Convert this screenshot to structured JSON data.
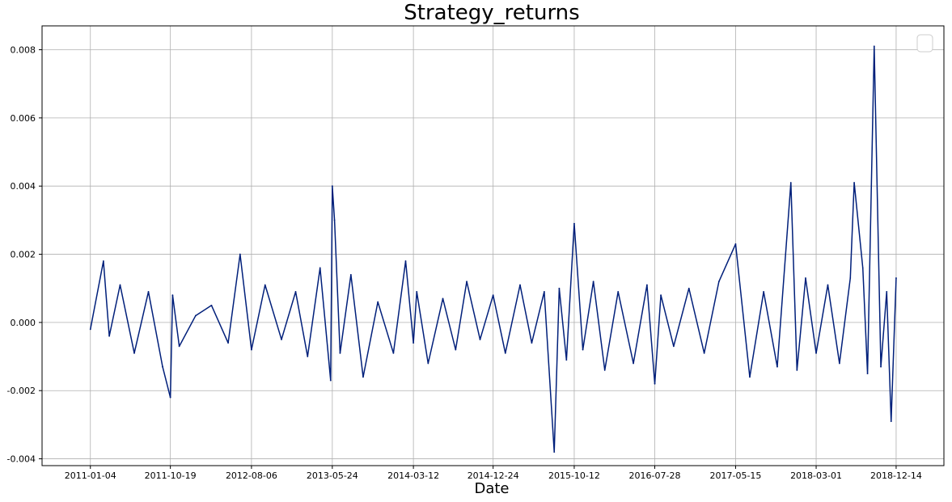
{
  "chart_data": {
    "type": "line",
    "title": "Strategy_returns",
    "xlabel": "Date",
    "ylabel": "",
    "grid": true,
    "legend": "top-right",
    "color": "#001f7a",
    "x_tick_labels": [
      "2011-01-04",
      "2011-10-19",
      "2012-08-06",
      "2013-05-24",
      "2014-03-12",
      "2014-12-24",
      "2015-10-12",
      "2016-07-28",
      "2017-05-15",
      "2018-03-01",
      "2018-12-14"
    ],
    "y_tick_labels": [
      "-0.004",
      "-0.002",
      "0.000",
      "0.002",
      "0.004",
      "0.006",
      "0.008"
    ],
    "y_ticks": [
      -0.004,
      -0.002,
      0.0,
      0.002,
      0.004,
      0.006,
      0.008
    ],
    "ylim": [
      -0.0042,
      0.0087
    ],
    "xlim": [
      "2010-07-14",
      "2019-06-04"
    ],
    "series": [
      {
        "x": [
          "2011-01-04",
          "2011-02-20",
          "2011-03-13",
          "2011-04-21",
          "2011-06-11",
          "2011-08-01",
          "2011-09-21",
          "2011-10-19",
          "2011-10-27",
          "2011-11-20",
          "2012-01-18",
          "2012-03-15",
          "2012-05-14",
          "2012-06-26",
          "2012-08-06",
          "2012-09-24",
          "2012-11-22",
          "2013-01-12",
          "2013-02-24",
          "2013-04-10",
          "2013-05-18",
          "2013-05-24",
          "2013-06-01",
          "2013-06-21",
          "2013-07-30",
          "2013-09-12",
          "2013-11-04",
          "2013-12-30",
          "2014-02-12",
          "2014-03-12",
          "2014-03-24",
          "2014-05-04",
          "2014-06-26",
          "2014-08-11",
          "2014-09-20",
          "2014-11-07",
          "2014-12-24",
          "2015-02-06",
          "2015-03-31",
          "2015-05-12",
          "2015-06-26",
          "2015-08-01",
          "2015-08-19",
          "2015-09-14",
          "2015-10-12",
          "2015-11-12",
          "2015-12-20",
          "2016-01-30",
          "2016-03-18",
          "2016-05-12",
          "2016-06-30",
          "2016-07-28",
          "2016-08-19",
          "2016-10-04",
          "2016-11-28",
          "2017-01-22",
          "2017-03-16",
          "2017-05-15",
          "2017-07-05",
          "2017-08-24",
          "2017-10-12",
          "2017-11-30",
          "2017-12-22",
          "2018-01-22",
          "2018-03-01",
          "2018-04-12",
          "2018-05-24",
          "2018-07-02",
          "2018-07-16",
          "2018-08-16",
          "2018-09-02",
          "2018-09-26",
          "2018-10-20",
          "2018-11-10",
          "2018-11-26",
          "2018-12-14"
        ],
        "y": [
          -0.0002,
          0.0018,
          -0.0004,
          0.0011,
          -0.0009,
          0.0009,
          -0.0013,
          -0.0022,
          0.0008,
          -0.0007,
          0.0002,
          0.0005,
          -0.0006,
          0.002,
          -0.0008,
          0.0011,
          -0.0005,
          0.0009,
          -0.001,
          0.0016,
          -0.0017,
          0.004,
          0.003,
          -0.0009,
          0.0014,
          -0.0016,
          0.0006,
          -0.0009,
          0.0018,
          -0.0006,
          0.0009,
          -0.0012,
          0.0007,
          -0.0008,
          0.0012,
          -0.0005,
          0.0008,
          -0.0009,
          0.0011,
          -0.0006,
          0.0009,
          -0.0038,
          0.001,
          -0.0011,
          0.0029,
          -0.0008,
          0.0012,
          -0.0014,
          0.0009,
          -0.0012,
          0.0011,
          -0.0018,
          0.0008,
          -0.0007,
          0.001,
          -0.0009,
          0.0012,
          0.0023,
          -0.0016,
          0.0009,
          -0.0013,
          0.0041,
          -0.0014,
          0.0013,
          -0.0009,
          0.0011,
          -0.0012,
          0.0013,
          0.0041,
          0.0016,
          -0.0015,
          0.0081,
          -0.0013,
          0.0009,
          -0.0029,
          0.0013
        ]
      }
    ]
  }
}
